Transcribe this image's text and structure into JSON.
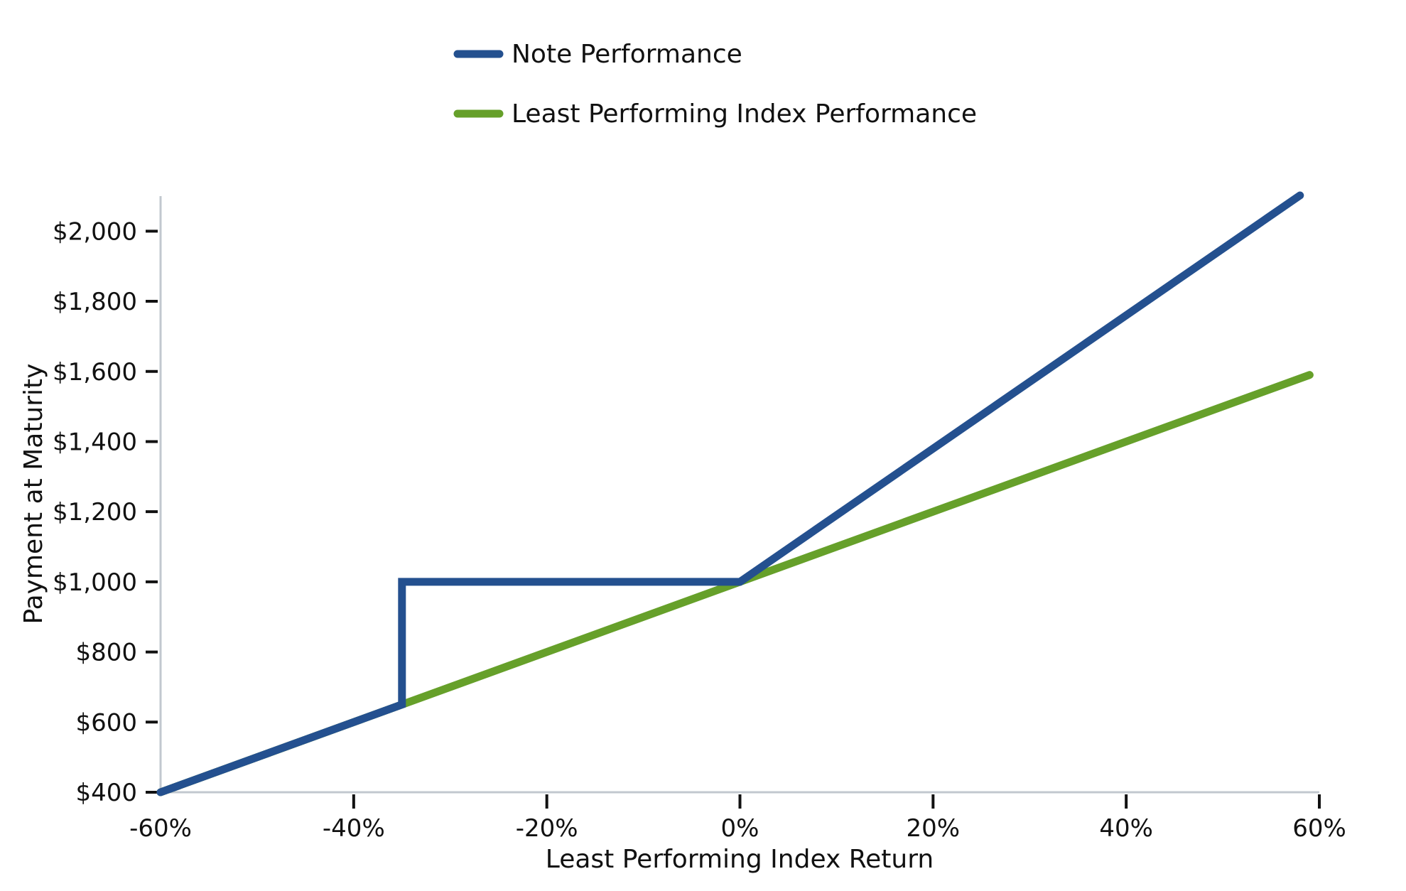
{
  "chart_data": {
    "type": "line",
    "xlabel": "Least Performing Index Return",
    "ylabel": "Payment at Maturity",
    "xlim": [
      -60,
      60
    ],
    "ylim": [
      400,
      2100
    ],
    "x_ticks": [
      -60,
      -40,
      -20,
      0,
      20,
      40,
      60
    ],
    "x_tick_labels": [
      "-60%",
      "-40%",
      "-20%",
      "0%",
      "20%",
      "40%",
      "60%"
    ],
    "y_ticks": [
      400,
      600,
      800,
      1000,
      1200,
      1400,
      1600,
      1800,
      2000
    ],
    "y_tick_labels": [
      "$400",
      "$600",
      "$800",
      "$1,000",
      "$1,200",
      "$1,400",
      "$1,600",
      "$1,800",
      "$2,000"
    ],
    "grid": false,
    "legend_position": "top-center",
    "series": [
      {
        "name": "Note Performance",
        "color": "#24508f",
        "points": [
          [
            -60,
            400
          ],
          [
            -35,
            650
          ],
          [
            -35,
            1000
          ],
          [
            0,
            1000
          ],
          [
            58,
            2102
          ]
        ]
      },
      {
        "name": "Least Performing Index Performance",
        "color": "#66a02a",
        "points": [
          [
            -60,
            400
          ],
          [
            59,
            1590
          ]
        ]
      }
    ]
  }
}
